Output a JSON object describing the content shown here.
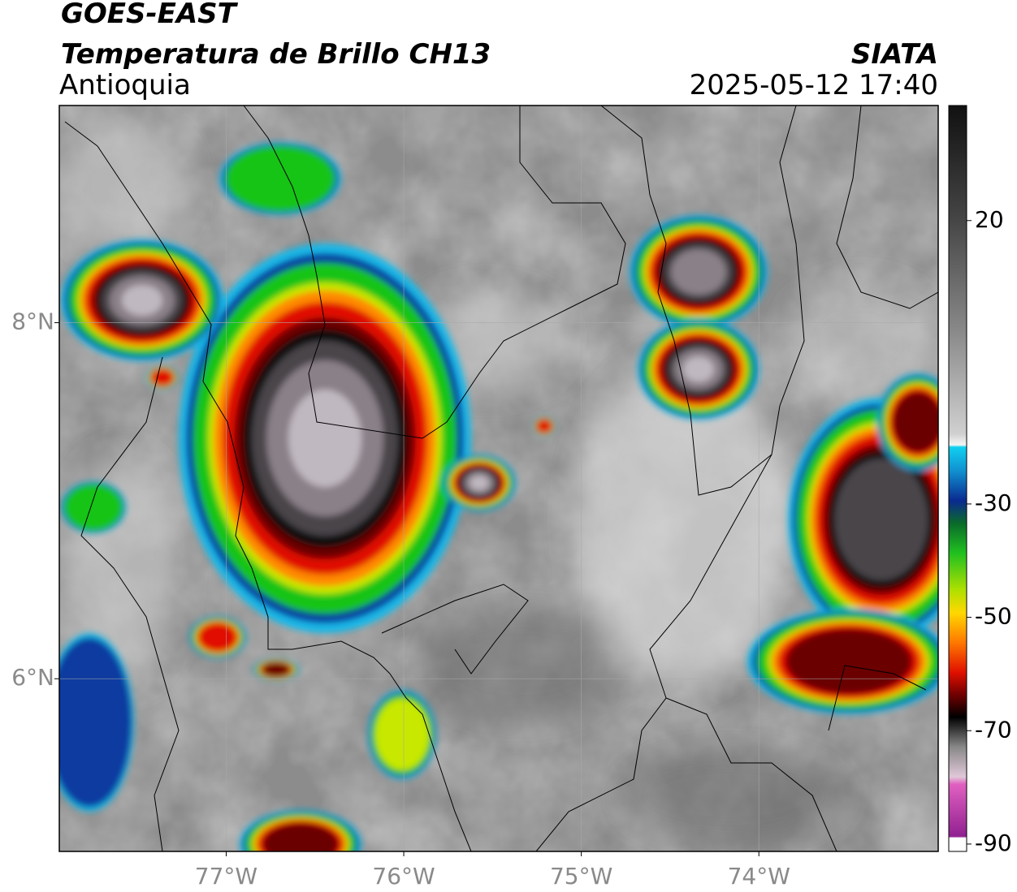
{
  "title": "GOES-EAST",
  "subtitle": "Temperatura de Brillo CH13",
  "region": "Antioquia",
  "agency": "SIATA",
  "timestamp": "2025-05-12 17:40",
  "map": {
    "xlim": [
      -77.94,
      -72.99
    ],
    "ylim": [
      5.03,
      9.22
    ],
    "xticks": [
      {
        "value": -77,
        "label": "77°W"
      },
      {
        "value": -76,
        "label": "76°W"
      },
      {
        "value": -75,
        "label": "75°W"
      },
      {
        "value": -74,
        "label": "74°W"
      }
    ],
    "yticks": [
      {
        "value": 6,
        "label": "6°N"
      },
      {
        "value": 8,
        "label": "8°N"
      }
    ],
    "grid": true
  },
  "colorbar": {
    "lim": [
      -91.3,
      40.3
    ],
    "ticks": [
      20,
      -30,
      -50,
      -70,
      -90
    ]
  }
}
